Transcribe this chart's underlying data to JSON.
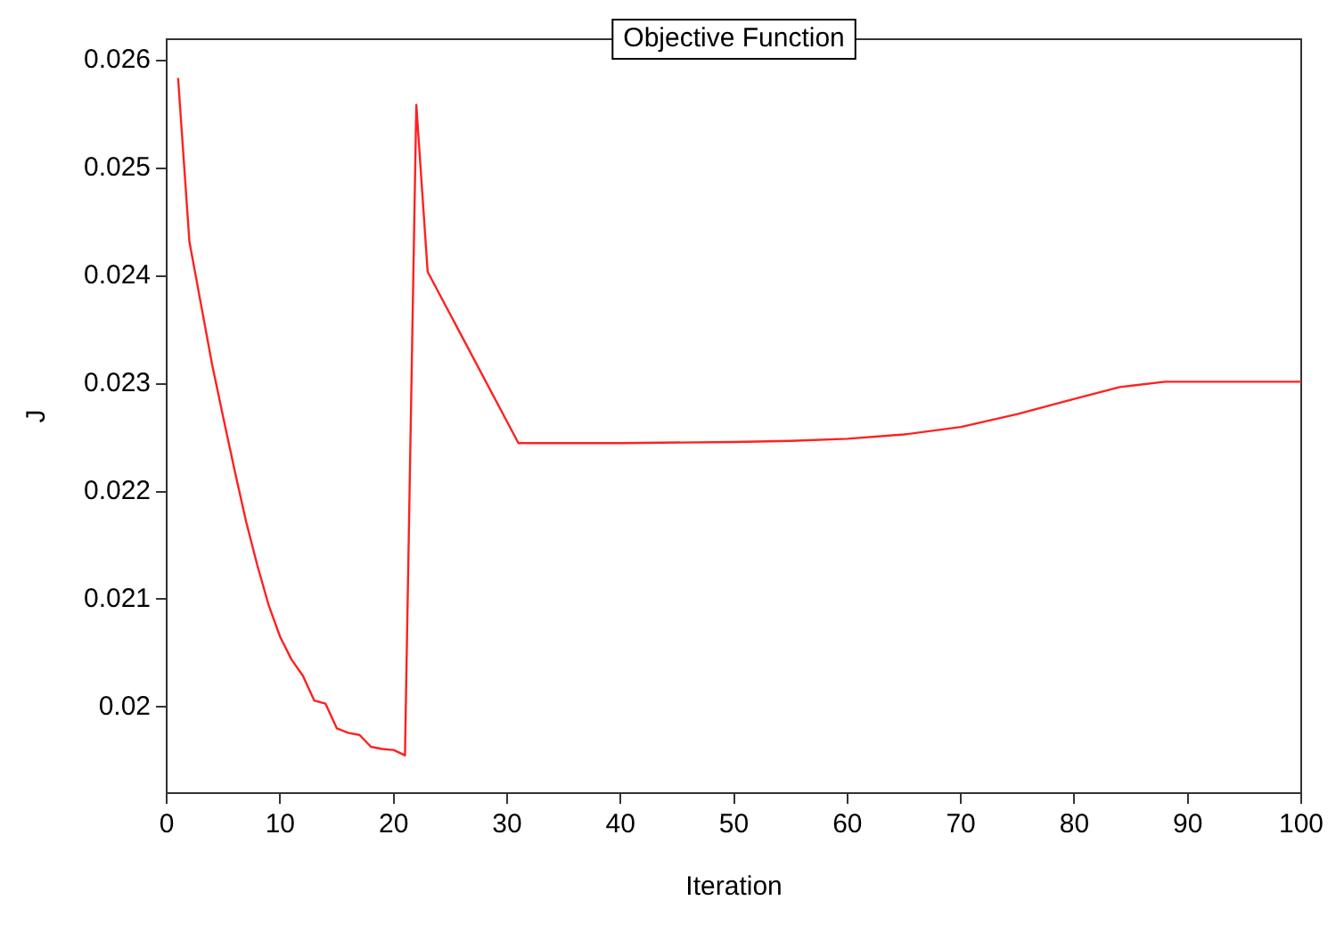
{
  "chart_data": {
    "type": "line",
    "title": "Objective Function",
    "xlabel": "Iteration",
    "ylabel": "J",
    "series": [
      {
        "color": "#ff2020",
        "x": [
          1,
          2,
          3,
          4,
          5,
          6,
          7,
          8,
          9,
          10,
          11,
          12,
          13,
          14,
          15,
          16,
          17,
          18,
          19,
          20,
          21,
          22,
          23,
          31,
          40,
          50,
          55,
          60,
          65,
          70,
          75,
          80,
          84,
          88,
          100
        ],
        "values": [
          0.02584,
          0.02432,
          0.02375,
          0.02318,
          0.02268,
          0.02219,
          0.02172,
          0.02131,
          0.02094,
          0.02065,
          0.02044,
          0.02029,
          0.02006,
          0.02003,
          0.0198,
          0.01976,
          0.01974,
          0.01963,
          0.01961,
          0.0196,
          0.01955,
          0.02559,
          0.02404,
          0.02245,
          0.02245,
          0.02246,
          0.02247,
          0.02249,
          0.02253,
          0.0226,
          0.02272,
          0.02286,
          0.02297,
          0.02302,
          0.02302
        ]
      }
    ],
    "xlim": [
      0,
      100
    ],
    "xticks": [
      0,
      10,
      20,
      30,
      40,
      50,
      60,
      70,
      80,
      90,
      100
    ],
    "ylim": [
      0.0192,
      0.0262
    ],
    "yticks": [
      0.02,
      0.021,
      0.022,
      0.023,
      0.024,
      0.025,
      0.026
    ],
    "grid": false,
    "legend": false,
    "marker": "none",
    "line_style": "solid"
  }
}
